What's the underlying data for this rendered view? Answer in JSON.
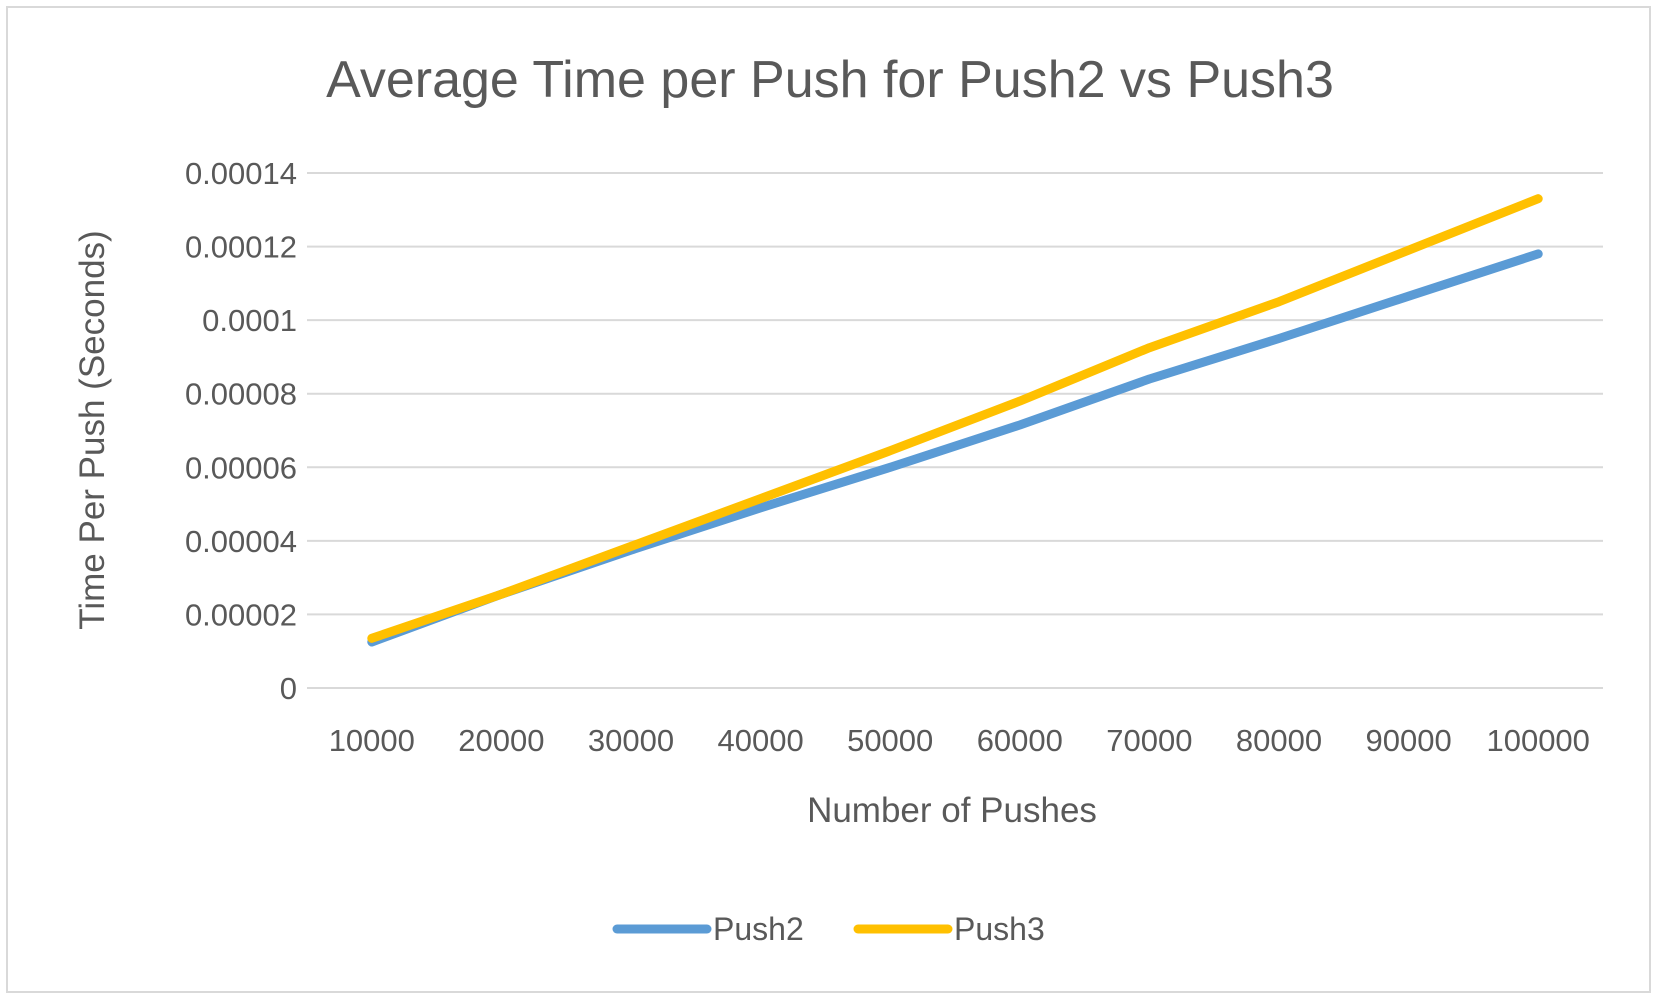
{
  "chart_data": {
    "type": "line",
    "title": "Average Time per Push for Push2 vs Push3",
    "xlabel": "Number of Pushes",
    "ylabel": "Time  Per Push (Seconds)",
    "categories": [
      "10000",
      "20000",
      "30000",
      "40000",
      "50000",
      "60000",
      "70000",
      "80000",
      "90000",
      "100000"
    ],
    "y_tick_labels": [
      "0",
      "0.00002",
      "0.00004",
      "0.00006",
      "0.00008",
      "0.0001",
      "0.00012",
      "0.00014"
    ],
    "ylim": [
      0,
      0.00014
    ],
    "grid": true,
    "legend_position": "bottom",
    "series": [
      {
        "name": "Push2",
        "color": "#5b9bd5",
        "values": [
          1.25e-05,
          2.55e-05,
          3.75e-05,
          4.9e-05,
          6e-05,
          7.15e-05,
          8.4e-05,
          9.5e-05,
          0.0001065,
          0.000118
        ]
      },
      {
        "name": "Push3",
        "color": "#ffc000",
        "values": [
          1.35e-05,
          2.55e-05,
          3.85e-05,
          5.15e-05,
          6.45e-05,
          7.8e-05,
          9.25e-05,
          0.000105,
          0.000119,
          0.000133
        ]
      }
    ]
  }
}
